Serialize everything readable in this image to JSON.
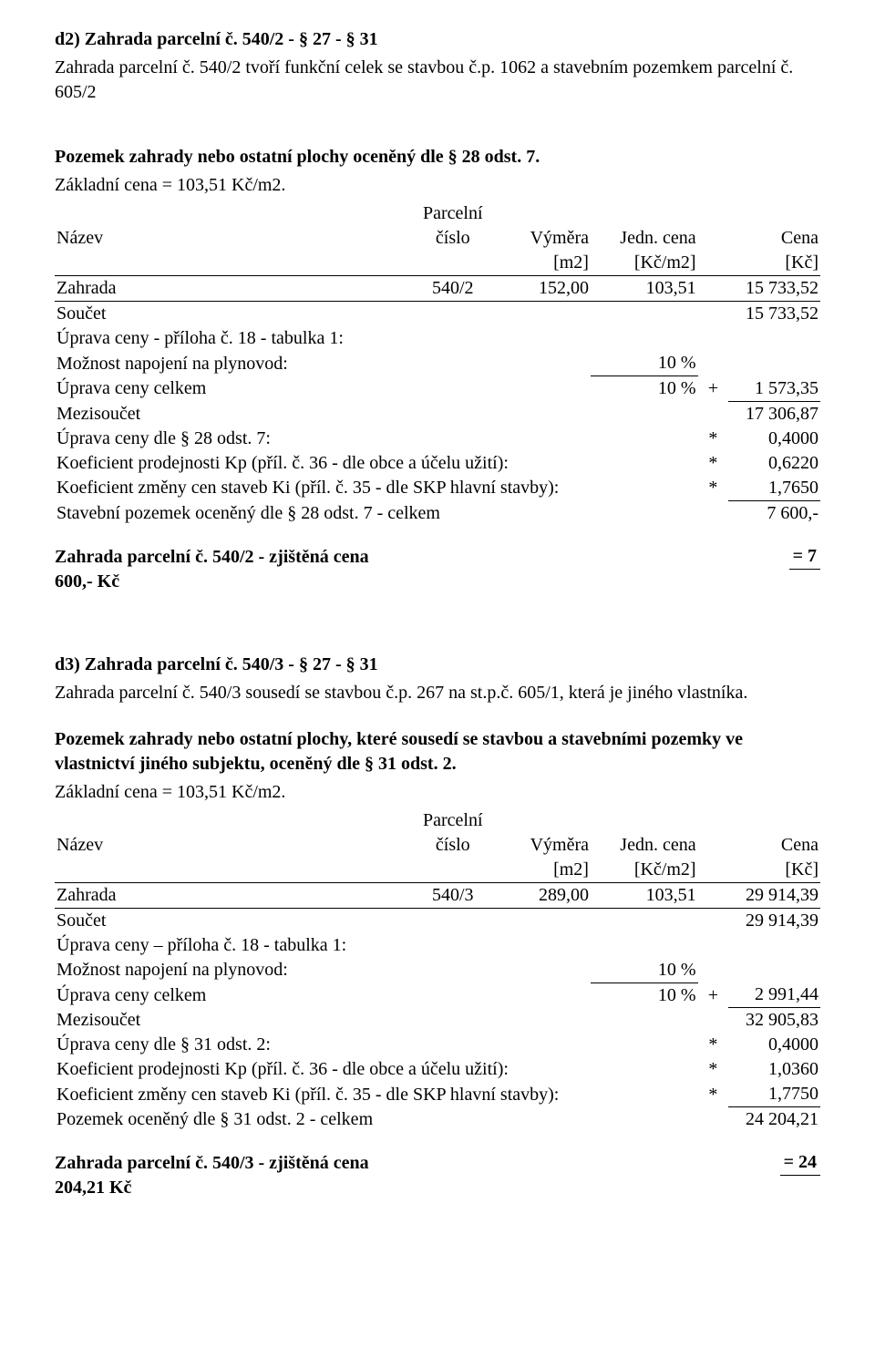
{
  "d2": {
    "heading": "d2) Zahrada parcelní č. 540/2  - § 27 - § 31",
    "desc": "Zahrada parcelní č. 540/2 tvoří funkční celek se stavbou č.p. 1062 a stavebním pozemkem parcelní č. 605/2",
    "sect_title": "Pozemek zahrady nebo ostatní plochy oceněný dle § 28 odst. 7.",
    "base_price": "Základní cena = 103,51 Kč/m2.",
    "hdr": {
      "name": "Název",
      "pc": "Parcelní číslo",
      "vym": "Výměra",
      "jedn": "Jedn. cena",
      "cena": "Cena",
      "vym_u": "[m2]",
      "jedn_u": "[Kč/m2]",
      "cena_u": "[Kč]"
    },
    "row": {
      "name": "Zahrada",
      "pc": "540/2",
      "vym": "152,00",
      "jedn": "103,51",
      "cena": "15 733,52"
    },
    "soucet": {
      "label": "Součet",
      "val": "15 733,52"
    },
    "uprava_pril": "Úprava ceny - příloha č. 18 - tabulka 1:",
    "plynovod": {
      "label": "Možnost napojení na plynovod:",
      "pct": "10 %"
    },
    "uprava_celkem": {
      "label": "Úprava ceny celkem",
      "pct": "10 %",
      "op": "+",
      "val": "1 573,35"
    },
    "mezi": {
      "label": "Mezisoučet",
      "val": "17 306,87"
    },
    "uprava28": {
      "label": "Úprava ceny dle § 28 odst. 7:",
      "op": "*",
      "val": "0,4000"
    },
    "kp": {
      "label": "Koeficient prodejnosti Kp (příl. č. 36 - dle obce a účelu užití):",
      "op": "*",
      "val": "0,6220"
    },
    "ki": {
      "label": "Koeficient změny cen staveb Ki (příl. č. 35 - dle SKP hlavní stavby):",
      "op": "*",
      "val": "1,7650"
    },
    "total": {
      "label": "Stavební pozemek oceněný dle § 28 odst. 7 - celkem",
      "val": "7 600,-"
    },
    "result": {
      "label": "Zahrada parcelní č. 540/2 - zjištěná cena",
      "eq": "=  7",
      "cont": "600,- Kč"
    }
  },
  "d3": {
    "heading": "d3) Zahrada parcelní č. 540/3  - § 27 - § 31",
    "desc": "Zahrada parcelní č. 540/3 sousedí se stavbou č.p. 267 na st.p.č. 605/1, která je jiného vlastníka.",
    "sect_title": "Pozemek zahrady nebo ostatní plochy, které sousedí se stavbou a stavebními pozemky ve vlastnictví jiného subjektu, oceněný dle § 31 odst. 2.",
    "base_price": "Základní cena = 103,51 Kč/m2.",
    "row": {
      "name": "Zahrada",
      "pc": "540/3",
      "vym": "289,00",
      "jedn": "103,51",
      "cena": "29 914,39"
    },
    "soucet": {
      "label": "Součet",
      "val": "29 914,39"
    },
    "uprava_pril": "Úprava ceny – příloha č. 18 - tabulka 1:",
    "plynovod": {
      "label": "Možnost napojení na plynovod:",
      "pct": "10 %"
    },
    "uprava_celkem": {
      "label": "Úprava ceny celkem",
      "pct": "10 %",
      "op": "+",
      "val": "2 991,44"
    },
    "mezi": {
      "label": "Mezisoučet",
      "val": "32 905,83"
    },
    "uprava31": {
      "label": "Úprava ceny dle § 31 odst. 2:",
      "op": "*",
      "val": "0,4000"
    },
    "kp": {
      "label": "Koeficient prodejnosti Kp (příl. č. 36 - dle obce a účelu užití):",
      "op": "*",
      "val": "1,0360"
    },
    "ki": {
      "label": "Koeficient změny cen staveb Ki (příl. č. 35 - dle SKP hlavní stavby):",
      "op": "*",
      "val": "1,7750"
    },
    "total": {
      "label": "Pozemek oceněný dle § 31 odst. 2 - celkem",
      "val": "24 204,21"
    },
    "result": {
      "label": "Zahrada parcelní č. 540/3 - zjištěná cena",
      "eq": "=  24",
      "cont": "204,21 Kč"
    }
  }
}
